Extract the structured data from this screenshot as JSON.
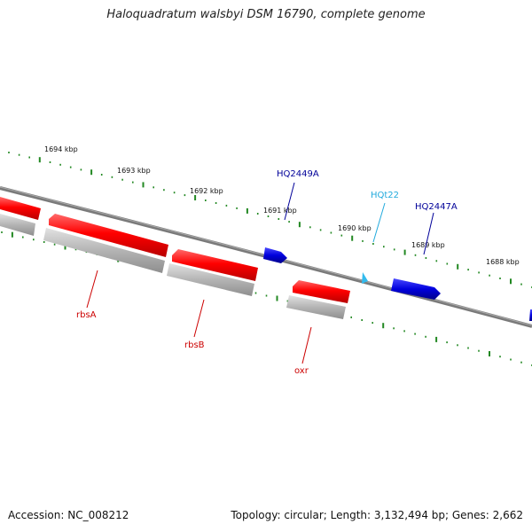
{
  "title": "Haloquadratum walsbyi DSM 16790, complete genome",
  "accession": "Accession: NC_008212",
  "summary": "Topology: circular; Length: 3,132,494 bp; Genes: 2,662",
  "colors": {
    "forward_gene": "#ff0000",
    "reverse_gene": "#0000cc",
    "rna_gene": "#33bbee",
    "shadow": "#b4b4b4",
    "backbone": "#7a7a7a",
    "ticks": "#228822",
    "forward_label": "#cc0000",
    "reverse_label": "#000099",
    "rna_label": "#22aadd"
  },
  "ruler": {
    "labels": [
      "1694 kbp",
      "1693 kbp",
      "1692 kbp",
      "1691 kbp",
      "1690 kbp",
      "1689 kbp",
      "1688 kbp"
    ]
  },
  "genes": [
    {
      "name": "rbsA",
      "type": "forward"
    },
    {
      "name": "rbsB",
      "type": "forward"
    },
    {
      "name": "oxr",
      "type": "forward"
    },
    {
      "name": "HQ2449A",
      "type": "reverse"
    },
    {
      "name": "HQt22",
      "type": "rna"
    },
    {
      "name": "HQ2447A",
      "type": "reverse"
    }
  ]
}
